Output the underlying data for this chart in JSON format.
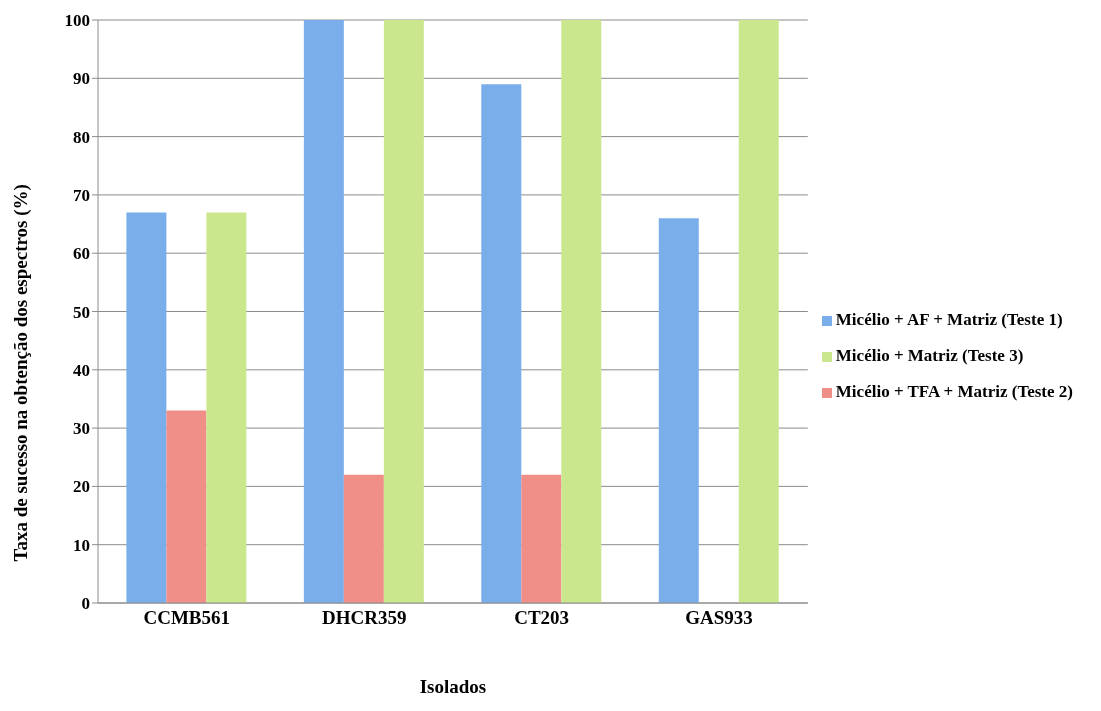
{
  "chart_data": {
    "type": "bar",
    "xlabel": "Isolados",
    "ylabel": "Taxa de sucesso na obtenção dos espectros (%)",
    "categories": [
      "CCMB561",
      "DHCR359",
      "CT203",
      "GAS933"
    ],
    "series": [
      {
        "name": "Micélio + AF + Matriz (Teste 1)",
        "color": "#7aaeea",
        "values": [
          67,
          100,
          89,
          66
        ]
      },
      {
        "name": "Micélio + TFA + Matriz (Teste 2)",
        "color": "#f08e88",
        "values": [
          33,
          22,
          22,
          0
        ]
      },
      {
        "name": "Micélio + Matriz (Teste 3)",
        "color": "#cbe78e",
        "values": [
          67,
          100,
          100,
          100
        ]
      }
    ],
    "ylim": [
      0,
      100
    ],
    "yticks": [
      0,
      10,
      20,
      30,
      40,
      50,
      60,
      70,
      80,
      90,
      100
    ],
    "grid": "y",
    "legend": "right"
  }
}
